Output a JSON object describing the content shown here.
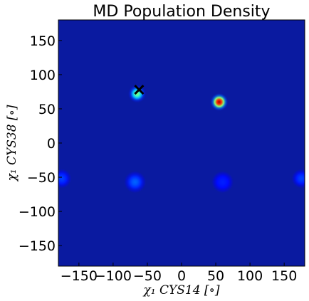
{
  "chart_data": {
    "type": "heatmap",
    "title": "MD Population Density",
    "xlabel": "χ₁ CYS14 [∘]",
    "ylabel": "χ₁ CYS38 [∘]",
    "xlim": [
      -180,
      180
    ],
    "ylim": [
      -180,
      180
    ],
    "xticks": [
      -150,
      -100,
      -50,
      0,
      50,
      100,
      150
    ],
    "yticks": [
      -150,
      -100,
      -50,
      0,
      50,
      100,
      150
    ],
    "colormap": "jet",
    "background_color": "#0a1aa0",
    "grid": false,
    "density_peaks": [
      {
        "x": 55,
        "y": 60,
        "intensity": 1.0,
        "spread": 13
      },
      {
        "x": -65,
        "y": 72,
        "intensity": 0.45,
        "spread": 13
      },
      {
        "x": -68,
        "y": -57,
        "intensity": 0.12,
        "spread": 16
      },
      {
        "x": -175,
        "y": -52,
        "intensity": 0.08,
        "spread": 14
      },
      {
        "x": 175,
        "y": -52,
        "intensity": 0.08,
        "spread": 14
      },
      {
        "x": 60,
        "y": -57,
        "intensity": 0.04,
        "spread": 16
      }
    ],
    "markers": [
      {
        "x": -62,
        "y": 78,
        "symbol": "x",
        "color": "#000000"
      }
    ]
  }
}
